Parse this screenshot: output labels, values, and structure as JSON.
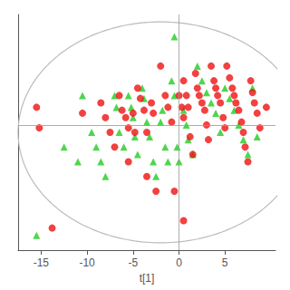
{
  "chart_data": {
    "type": "scatter",
    "xlabel": "t[1]",
    "xlim": [
      -17.5,
      10.5
    ],
    "ylim": [
      -8.5,
      7.5
    ],
    "xticks": [
      -15,
      -10,
      -5,
      0,
      5
    ],
    "yticks": [],
    "tick_labels": "x",
    "grid": false,
    "ellipse": {
      "cx": -2.0,
      "cy": -0.5,
      "rx": 15.5,
      "ry": 7.5,
      "color": "#bbbbbb"
    },
    "crosshair": {
      "x": 0,
      "y": 0,
      "color": "#999999"
    },
    "series": [
      {
        "color": "#22cc22",
        "marker": "triangle",
        "values": [
          [
            -0.5,
            6.0
          ],
          [
            -15.5,
            -7.5
          ],
          [
            -12.5,
            -1.5
          ],
          [
            -11.0,
            -2.5
          ],
          [
            -10.5,
            2.0
          ],
          [
            -9.5,
            -0.5
          ],
          [
            -9.0,
            -1.5
          ],
          [
            -8.5,
            -2.5
          ],
          [
            -8.0,
            -3.5
          ],
          [
            -7.0,
            2.0
          ],
          [
            -6.8,
            1.2
          ],
          [
            -6.5,
            -0.5
          ],
          [
            -6.0,
            -1.5
          ],
          [
            -5.5,
            2.0
          ],
          [
            -5.2,
            1.2
          ],
          [
            -5.0,
            0.5
          ],
          [
            -4.8,
            -0.8
          ],
          [
            -4.5,
            -2.0
          ],
          [
            -4.0,
            2.5
          ],
          [
            -3.8,
            1.8
          ],
          [
            -3.5,
            0.2
          ],
          [
            -3.2,
            -0.8
          ],
          [
            -2.8,
            -2.5
          ],
          [
            -2.5,
            -3.5
          ],
          [
            -2.0,
            0.2
          ],
          [
            -1.8,
            1.0
          ],
          [
            -1.5,
            -1.5
          ],
          [
            -1.2,
            -2.5
          ],
          [
            -0.8,
            3.0
          ],
          [
            -0.5,
            2.0
          ],
          [
            -0.2,
            -1.5
          ],
          [
            0.0,
            -2.5
          ],
          [
            0.5,
            1.0
          ],
          [
            0.8,
            0.0
          ],
          [
            1.0,
            -1.0
          ],
          [
            1.5,
            -2.0
          ],
          [
            2.0,
            4.0
          ],
          [
            2.5,
            3.0
          ],
          [
            3.0,
            2.2
          ],
          [
            3.5,
            1.5
          ],
          [
            4.0,
            0.8
          ],
          [
            4.5,
            -0.5
          ],
          [
            5.0,
            2.5
          ],
          [
            5.5,
            1.8
          ],
          [
            6.0,
            1.0
          ],
          [
            6.5,
            0.0
          ],
          [
            7.0,
            -1.0
          ],
          [
            7.5,
            -2.0
          ],
          [
            8.0,
            2.5
          ],
          [
            8.5,
            -0.8
          ]
        ]
      },
      {
        "color": "#ee1111",
        "marker": "circle",
        "values": [
          [
            -15.5,
            1.2
          ],
          [
            -15.2,
            -0.2
          ],
          [
            -13.8,
            -7.0
          ],
          [
            -10.5,
            0.8
          ],
          [
            -8.5,
            1.5
          ],
          [
            -8.0,
            0.5
          ],
          [
            -7.5,
            -0.5
          ],
          [
            -7.0,
            -1.5
          ],
          [
            -6.5,
            2.0
          ],
          [
            -6.2,
            1.0
          ],
          [
            -5.8,
            0.5
          ],
          [
            -5.5,
            -0.2
          ],
          [
            -5.5,
            -2.5
          ],
          [
            -5.0,
            0.8
          ],
          [
            -4.8,
            -0.5
          ],
          [
            -4.5,
            2.5
          ],
          [
            -4.2,
            1.8
          ],
          [
            -3.8,
            1.0
          ],
          [
            -3.5,
            -0.5
          ],
          [
            -3.5,
            -3.5
          ],
          [
            -3.0,
            1.5
          ],
          [
            -2.8,
            0.8
          ],
          [
            -2.5,
            -4.5
          ],
          [
            -2.0,
            4.0
          ],
          [
            -1.5,
            2.0
          ],
          [
            -1.2,
            1.2
          ],
          [
            -0.8,
            0.2
          ],
          [
            -0.5,
            -4.5
          ],
          [
            0.0,
            2.0
          ],
          [
            0.3,
            1.2
          ],
          [
            0.5,
            0.5
          ],
          [
            0.5,
            3.0
          ],
          [
            0.8,
            2.0
          ],
          [
            1.0,
            1.2
          ],
          [
            1.2,
            -0.8
          ],
          [
            1.5,
            -2.0
          ],
          [
            1.8,
            3.5
          ],
          [
            2.0,
            2.5
          ],
          [
            2.2,
            2.0
          ],
          [
            2.5,
            1.5
          ],
          [
            2.8,
            1.0
          ],
          [
            3.0,
            0.0
          ],
          [
            3.2,
            -1.0
          ],
          [
            3.5,
            4.0
          ],
          [
            3.8,
            3.0
          ],
          [
            4.0,
            2.5
          ],
          [
            4.2,
            2.0
          ],
          [
            4.5,
            1.5
          ],
          [
            4.8,
            0.5
          ],
          [
            5.0,
            -0.2
          ],
          [
            5.2,
            4.0
          ],
          [
            5.5,
            3.2
          ],
          [
            5.8,
            2.5
          ],
          [
            6.0,
            2.0
          ],
          [
            6.2,
            1.5
          ],
          [
            6.5,
            1.0
          ],
          [
            6.8,
            0.2
          ],
          [
            7.0,
            -0.5
          ],
          [
            7.2,
            -1.5
          ],
          [
            7.5,
            -2.5
          ],
          [
            7.8,
            3.0
          ],
          [
            8.0,
            2.2
          ],
          [
            8.2,
            1.5
          ],
          [
            8.5,
            0.8
          ],
          [
            8.8,
            -0.2
          ],
          [
            9.5,
            1.2
          ],
          [
            0.5,
            -6.5
          ]
        ]
      }
    ]
  }
}
